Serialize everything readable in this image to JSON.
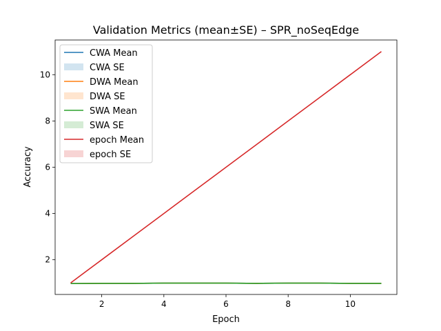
{
  "chart_data": {
    "type": "line",
    "title": "Validation Metrics (mean±SE) – SPR_noSeqEdge",
    "xlabel": "Epoch",
    "ylabel": "Accuracy",
    "xlim": [
      0.5,
      11.5
    ],
    "ylim": [
      0.5,
      11.5
    ],
    "xticks": [
      2,
      4,
      6,
      8,
      10
    ],
    "yticks": [
      2,
      4,
      6,
      8,
      10
    ],
    "grid": false,
    "legend_position": "top-left",
    "x": [
      1,
      2,
      3,
      4,
      5,
      6,
      7,
      8,
      9,
      10,
      11
    ],
    "series": [
      {
        "name": "CWA Mean",
        "se_name": "CWA SE",
        "color": "#1f77b4",
        "values": [
          0.97,
          0.98,
          0.98,
          0.99,
          0.99,
          0.99,
          0.98,
          0.99,
          0.99,
          0.98,
          0.98
        ],
        "se": [
          0.003,
          0.003,
          0.003,
          0.003,
          0.003,
          0.003,
          0.003,
          0.003,
          0.003,
          0.003,
          0.003
        ]
      },
      {
        "name": "DWA Mean",
        "se_name": "DWA SE",
        "color": "#ff7f0e",
        "values": [
          0.97,
          0.98,
          0.98,
          0.99,
          0.99,
          0.99,
          0.98,
          0.99,
          0.99,
          0.98,
          0.98
        ],
        "se": [
          0.003,
          0.003,
          0.003,
          0.003,
          0.003,
          0.003,
          0.003,
          0.003,
          0.003,
          0.003,
          0.003
        ]
      },
      {
        "name": "SWA Mean",
        "se_name": "SWA SE",
        "color": "#2ca02c",
        "values": [
          0.97,
          0.98,
          0.98,
          0.99,
          0.99,
          0.99,
          0.98,
          0.99,
          0.99,
          0.98,
          0.98
        ],
        "se": [
          0.003,
          0.003,
          0.003,
          0.003,
          0.003,
          0.003,
          0.003,
          0.003,
          0.003,
          0.003,
          0.003
        ]
      },
      {
        "name": "epoch Mean",
        "se_name": "epoch SE",
        "color": "#d62728",
        "values": [
          1,
          2,
          3,
          4,
          5,
          6,
          7,
          8,
          9,
          10,
          11
        ],
        "se": [
          0,
          0,
          0,
          0,
          0,
          0,
          0,
          0,
          0,
          0,
          0
        ]
      }
    ]
  }
}
